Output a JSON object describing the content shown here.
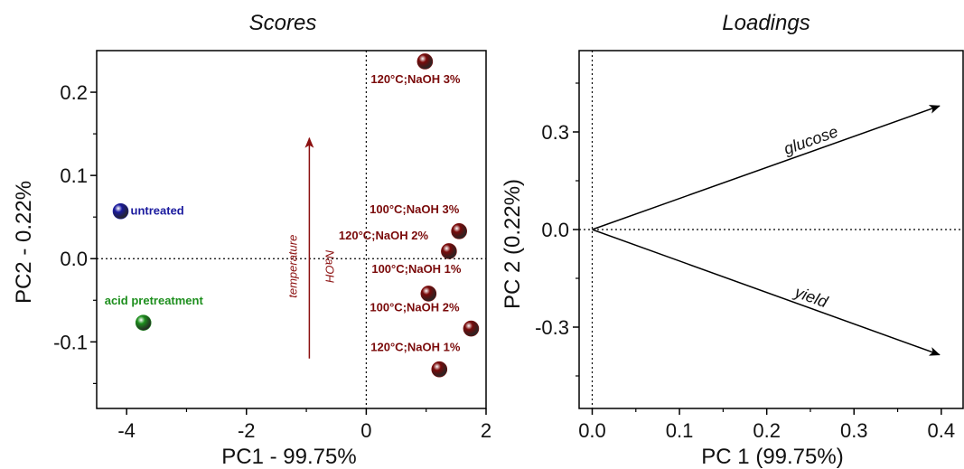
{
  "chart_data": [
    {
      "type": "scatter",
      "title": "Scores",
      "xlabel": "PC1 - 99.75%",
      "ylabel": "PC2 - 0.22%",
      "xlim": [
        -4.5,
        2
      ],
      "ylim": [
        -0.18,
        0.25
      ],
      "xticks": [
        "-4",
        "-2",
        "0",
        "2"
      ],
      "yticks": [
        "0.2",
        "0.1",
        "0.0",
        "-0.1"
      ],
      "points": [
        {
          "label": "untreated",
          "x": -4.1,
          "y": 0.057,
          "color": "#1a1a9e"
        },
        {
          "label": "acid pretreatment",
          "x": -3.72,
          "y": -0.077,
          "color": "#1e8f1e"
        },
        {
          "label": "120°C;NaOH 3%",
          "x": 0.98,
          "y": 0.237,
          "color": "#7a0a0a"
        },
        {
          "label": "100°C;NaOH 3%",
          "x": 1.55,
          "y": 0.033,
          "color": "#7a0a0a"
        },
        {
          "label": "120°C;NaOH 2%",
          "x": 1.38,
          "y": 0.009,
          "color": "#7a0a0a"
        },
        {
          "label": "100°C;NaOH 1%",
          "x": 1.04,
          "y": -0.042,
          "color": "#7a0a0a"
        },
        {
          "label": "100°C;NaOH 2%",
          "x": 1.75,
          "y": -0.084,
          "color": "#7a0a0a"
        },
        {
          "label": "120°C;NaOH 1%",
          "x": 1.22,
          "y": -0.133,
          "color": "#7a0a0a"
        }
      ],
      "annotation": {
        "lines": [
          "temperature",
          "NaOH"
        ],
        "from": [
          -0.95,
          -0.12
        ],
        "to": [
          -0.95,
          0.145
        ],
        "color": "#8b0f0f"
      }
    },
    {
      "type": "line",
      "title": "Loadings",
      "xlabel": "PC 1 (99.75%)",
      "ylabel": "PC 2 (0.22%)",
      "xlim": [
        -0.015,
        0.425
      ],
      "ylim": [
        -0.55,
        0.55
      ],
      "xticks": [
        "0.0",
        "0.1",
        "0.2",
        "0.3",
        "0.4"
      ],
      "yticks": [
        "0.3",
        "0.0",
        "-0.3"
      ],
      "vectors": [
        {
          "label": "glucose",
          "x": 0.398,
          "y": 0.38
        },
        {
          "label": "yield",
          "x": 0.398,
          "y": -0.385
        }
      ]
    }
  ]
}
